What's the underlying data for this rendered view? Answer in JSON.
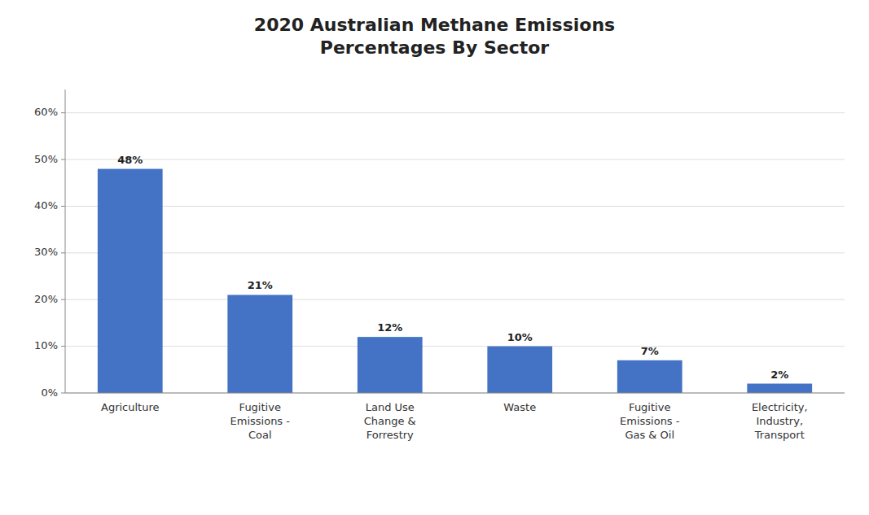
{
  "chart_data": {
    "type": "bar",
    "title": "2020 Australian Methane Emissions\nPercentages By Sector",
    "categories": [
      "Agriculture",
      "Fugitive\nEmissions -\nCoal",
      "Land Use\nChange &\nForrestry",
      "Waste",
      "Fugitive\nEmissions -\nGas & Oil",
      "Electricity,\nIndustry,\nTransport"
    ],
    "values": [
      48,
      21,
      12,
      10,
      7,
      2
    ],
    "value_labels": [
      "48%",
      "21%",
      "12%",
      "10%",
      "7%",
      "2%"
    ],
    "color": "#4472C4",
    "ylim": [
      0,
      65
    ],
    "yticks": [
      {
        "value": 0,
        "label": "0%"
      },
      {
        "value": 10,
        "label": "10%"
      },
      {
        "value": 20,
        "label": "20%"
      },
      {
        "value": 30,
        "label": "30%"
      },
      {
        "value": 40,
        "label": "40%"
      },
      {
        "value": 50,
        "label": "50%"
      },
      {
        "value": 60,
        "label": "60%"
      }
    ],
    "grid": true,
    "data_labels": true
  }
}
